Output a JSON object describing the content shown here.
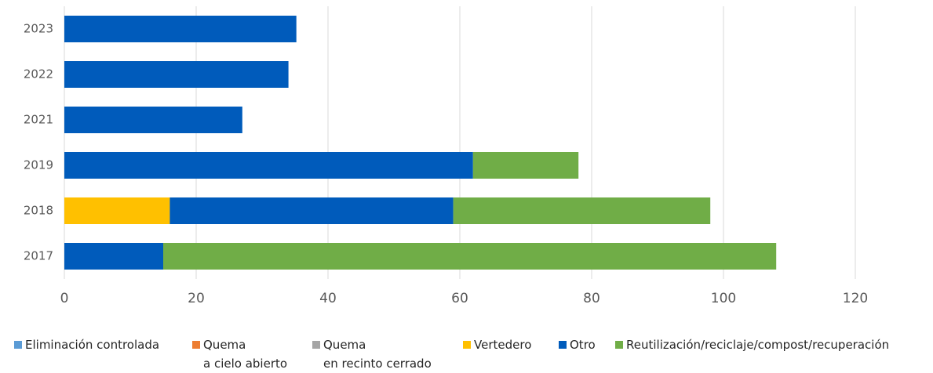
{
  "chart_data": {
    "type": "stacked-barh",
    "categories": [
      "2017",
      "2018",
      "2019",
      "2021",
      "2022",
      "2023"
    ],
    "series": [
      {
        "name": "Eliminación controlada",
        "color": "#5b9bd5",
        "values": [
          0,
          0,
          0,
          0,
          0,
          0
        ]
      },
      {
        "name": "Quema\na cielo abierto",
        "color": "#ed7d31",
        "values": [
          0,
          0,
          0,
          0,
          0,
          0
        ]
      },
      {
        "name": "Quema\nen recinto cerrado",
        "color": "#a5a5a5",
        "values": [
          0,
          0,
          0,
          0,
          0,
          0
        ]
      },
      {
        "name": "Vertedero",
        "color": "#ffc000",
        "values": [
          0,
          16,
          0,
          0,
          0,
          0
        ]
      },
      {
        "name": "Otro",
        "color": "#005bbb",
        "values": [
          15,
          43,
          62,
          27,
          34,
          35.2
        ]
      },
      {
        "name": "Reutilización/reciclaje/compost/recuperación",
        "color": "#70ad47",
        "values": [
          93,
          39,
          16,
          0,
          0,
          0
        ]
      }
    ],
    "xlim": [
      0,
      120
    ],
    "xticks": [
      0,
      20,
      40,
      60,
      80,
      100,
      120
    ],
    "grid": true,
    "legend": "bottom"
  }
}
